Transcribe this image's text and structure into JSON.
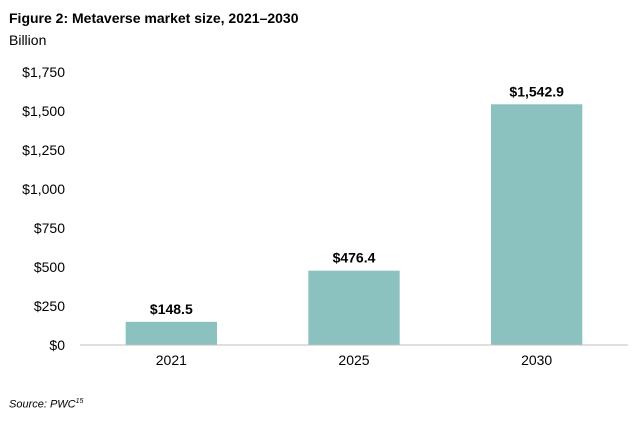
{
  "figure": {
    "title": "Figure 2: Metaverse market size, 2021–2030",
    "unit_label": "Billion",
    "source_text": "Source: PWC",
    "source_ref": "15"
  },
  "chart_data": {
    "type": "bar",
    "title": "Figure 2: Metaverse market size, 2021–2030",
    "xlabel": "",
    "ylabel": "Billion",
    "categories": [
      "2021",
      "2025",
      "2030"
    ],
    "values": [
      148.5,
      476.4,
      1542.9
    ],
    "value_labels": [
      "$148.5",
      "$476.4",
      "$1,542.9"
    ],
    "ylim": [
      0,
      1750
    ],
    "yticks": [
      0,
      250,
      500,
      750,
      1000,
      1250,
      1500,
      1750
    ],
    "ytick_labels": [
      "$0",
      "$250",
      "$500",
      "$750",
      "$1,000",
      "$1,250",
      "$1,500",
      "$1,750"
    ],
    "grid": false,
    "legend": "none",
    "bar_color": "#8bc1bf"
  }
}
